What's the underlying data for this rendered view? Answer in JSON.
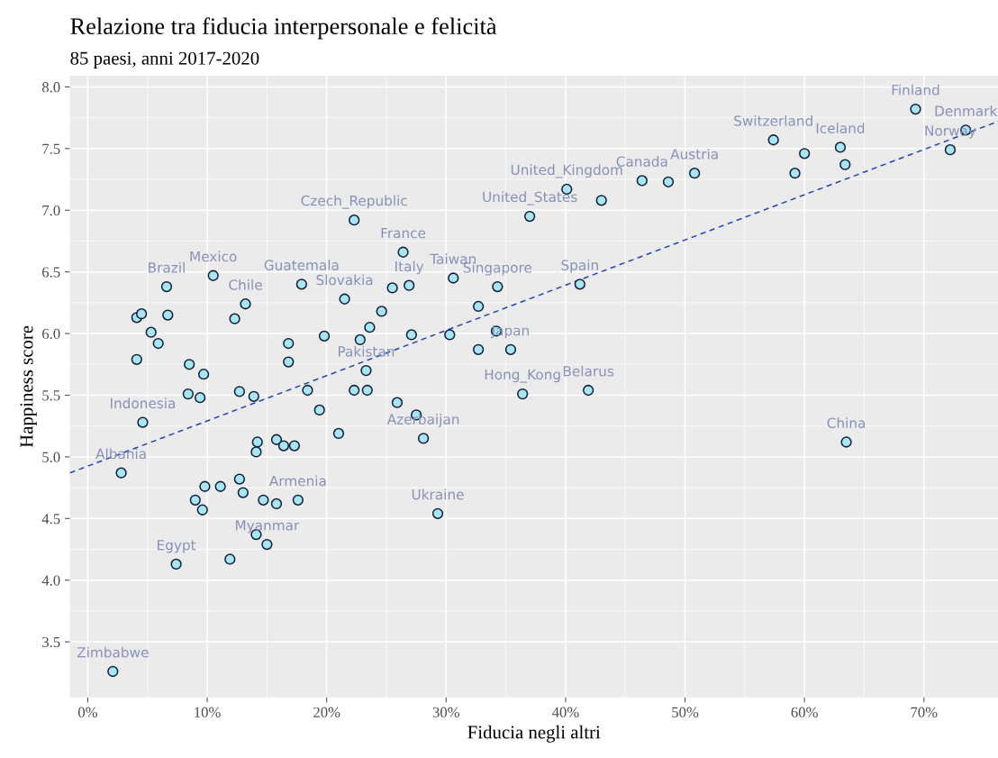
{
  "chart_data": {
    "type": "scatter",
    "title": "Relazione tra fiducia interpersonale e felicità",
    "subtitle": "85 paesi, anni 2017-2020",
    "xlabel": "Fiducia negli altri",
    "ylabel": "Happiness score",
    "xlim": [
      -1.5,
      76.2
    ],
    "ylim": [
      3.05,
      8.09
    ],
    "xticks": [
      {
        "value": 0,
        "label": "0%"
      },
      {
        "value": 10,
        "label": "10%"
      },
      {
        "value": 20,
        "label": "20%"
      },
      {
        "value": 30,
        "label": "30%"
      },
      {
        "value": 40,
        "label": "40%"
      },
      {
        "value": 50,
        "label": "50%"
      },
      {
        "value": 60,
        "label": "60%"
      },
      {
        "value": 70,
        "label": "70%"
      }
    ],
    "yticks": [
      {
        "value": 3.5,
        "label": "3.5"
      },
      {
        "value": 4,
        "label": "4.0"
      },
      {
        "value": 4.5,
        "label": "4.5"
      },
      {
        "value": 5,
        "label": "5.0"
      },
      {
        "value": 5.5,
        "label": "5.5"
      },
      {
        "value": 6,
        "label": "6.0"
      },
      {
        "value": 6.5,
        "label": "6.5"
      },
      {
        "value": 7,
        "label": "7.0"
      },
      {
        "value": 7.5,
        "label": "7.5"
      },
      {
        "value": 8,
        "label": "8.0"
      }
    ],
    "grid": true,
    "legend": false,
    "series": [
      {
        "marker": "circle",
        "color": "#a8e6f5",
        "x": [
          69.3,
          73.5,
          72.2,
          57.4,
          63.0,
          60.0,
          63.4,
          59.2,
          50.8,
          46.4,
          48.6,
          40.1,
          43.0,
          37.0,
          22.3,
          26.4,
          30.6,
          10.5,
          17.9,
          26.9,
          25.5,
          34.3,
          41.2,
          6.6,
          21.5,
          13.2,
          12.3,
          24.6,
          32.7,
          4.1,
          4.5,
          6.7,
          5.3,
          5.9,
          4.1,
          19.8,
          23.6,
          27.1,
          30.3,
          34.2,
          35.4,
          32.7,
          16.8,
          22.8,
          16.8,
          8.5,
          9.7,
          23.3,
          8.4,
          9.4,
          12.7,
          13.9,
          18.4,
          22.3,
          23.4,
          36.4,
          41.9,
          25.9,
          27.5,
          19.4,
          4.6,
          21.0,
          28.1,
          14.2,
          15.8,
          16.4,
          17.3,
          14.1,
          63.5,
          2.8,
          12.7,
          13.0,
          9.8,
          11.1,
          9.0,
          9.6,
          14.7,
          15.8,
          17.6,
          29.3,
          14.1,
          15.0,
          7.4,
          11.9,
          2.1
        ],
        "values": [
          7.82,
          7.65,
          7.49,
          7.57,
          7.51,
          7.46,
          7.37,
          7.3,
          7.3,
          7.24,
          7.23,
          7.17,
          7.08,
          6.95,
          6.92,
          6.66,
          6.45,
          6.47,
          6.4,
          6.39,
          6.37,
          6.38,
          6.4,
          6.38,
          6.28,
          6.24,
          6.12,
          6.18,
          6.22,
          6.13,
          6.16,
          6.15,
          6.01,
          5.92,
          5.79,
          5.98,
          6.05,
          5.99,
          5.99,
          6.02,
          5.87,
          5.87,
          5.92,
          5.95,
          5.77,
          5.75,
          5.67,
          5.7,
          5.51,
          5.48,
          5.53,
          5.49,
          5.54,
          5.54,
          5.54,
          5.51,
          5.54,
          5.44,
          5.34,
          5.38,
          5.28,
          5.19,
          5.15,
          5.12,
          5.14,
          5.09,
          5.09,
          5.04,
          5.12,
          4.87,
          4.82,
          4.71,
          4.76,
          4.76,
          4.65,
          4.57,
          4.65,
          4.62,
          4.65,
          4.54,
          4.37,
          4.29,
          4.13,
          4.17,
          3.26
        ]
      },
      {
        "type": "line",
        "line_style": "dashed",
        "color": "#2646b8",
        "x": [
          -1.5,
          76.2
        ],
        "values": [
          4.87,
          7.72
        ]
      }
    ],
    "annotations": [
      {
        "text": "Finland",
        "x": 69.3,
        "y": 7.82
      },
      {
        "text": "Denmark",
        "x": 73.5,
        "y": 7.65
      },
      {
        "text": "Norway",
        "x": 72.2,
        "y": 7.49
      },
      {
        "text": "Switzerland",
        "x": 57.4,
        "y": 7.57
      },
      {
        "text": "Iceland",
        "x": 63.0,
        "y": 7.51
      },
      {
        "text": "Austria",
        "x": 50.8,
        "y": 7.3
      },
      {
        "text": "Canada",
        "x": 46.4,
        "y": 7.24
      },
      {
        "text": "United_Kingdom",
        "x": 40.1,
        "y": 7.17
      },
      {
        "text": "United_States",
        "x": 37.0,
        "y": 6.95
      },
      {
        "text": "Czech_Republic",
        "x": 22.3,
        "y": 6.92
      },
      {
        "text": "France",
        "x": 26.4,
        "y": 6.66
      },
      {
        "text": "Taiwan",
        "x": 30.6,
        "y": 6.45
      },
      {
        "text": "Mexico",
        "x": 10.5,
        "y": 6.47
      },
      {
        "text": "Guatemala",
        "x": 17.9,
        "y": 6.4
      },
      {
        "text": "Italy",
        "x": 26.9,
        "y": 6.39
      },
      {
        "text": "Singapore",
        "x": 34.3,
        "y": 6.38
      },
      {
        "text": "Spain",
        "x": 41.2,
        "y": 6.4
      },
      {
        "text": "Brazil",
        "x": 6.6,
        "y": 6.38
      },
      {
        "text": "Slovakia",
        "x": 21.5,
        "y": 6.28
      },
      {
        "text": "Chile",
        "x": 13.2,
        "y": 6.24
      },
      {
        "text": "Japan",
        "x": 35.4,
        "y": 5.87
      },
      {
        "text": "Pakistan",
        "x": 23.3,
        "y": 5.7
      },
      {
        "text": "Hong_Kong",
        "x": 36.4,
        "y": 5.51
      },
      {
        "text": "Belarus",
        "x": 41.9,
        "y": 5.54
      },
      {
        "text": "Indonesia",
        "x": 4.6,
        "y": 5.28
      },
      {
        "text": "Azerbaijan",
        "x": 28.1,
        "y": 5.15
      },
      {
        "text": "China",
        "x": 63.5,
        "y": 5.12
      },
      {
        "text": "Albania",
        "x": 2.8,
        "y": 4.87
      },
      {
        "text": "Armenia",
        "x": 17.6,
        "y": 4.65
      },
      {
        "text": "Ukraine",
        "x": 29.3,
        "y": 4.54
      },
      {
        "text": "Myanmar",
        "x": 15.0,
        "y": 4.29
      },
      {
        "text": "Egypt",
        "x": 7.4,
        "y": 4.13
      },
      {
        "text": "Zimbabwe",
        "x": 2.1,
        "y": 3.26
      }
    ]
  }
}
